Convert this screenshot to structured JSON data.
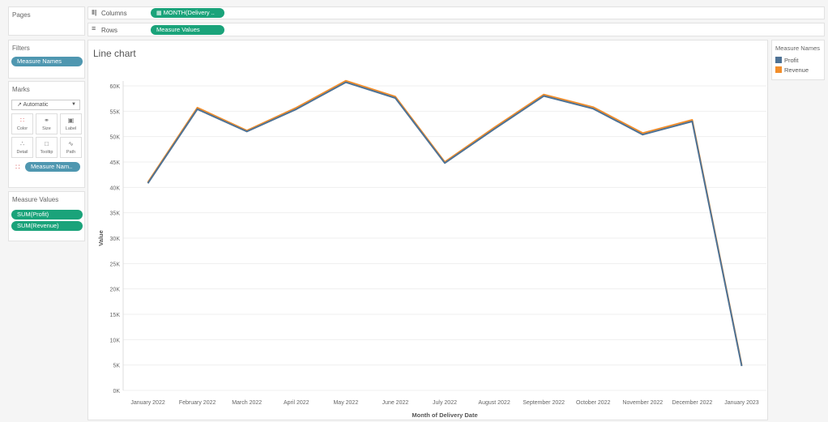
{
  "pages_panel": {
    "title": "Pages"
  },
  "filters_panel": {
    "title": "Filters",
    "pills": [
      "Measure Names"
    ]
  },
  "marks_panel": {
    "title": "Marks",
    "mark_type": "Automatic",
    "buttons": [
      {
        "label": "Color",
        "icon": "color-icon"
      },
      {
        "label": "Size",
        "icon": "size-icon"
      },
      {
        "label": "Label",
        "icon": "label-icon"
      },
      {
        "label": "Detail",
        "icon": "detail-icon"
      },
      {
        "label": "Tooltip",
        "icon": "tooltip-icon"
      },
      {
        "label": "Path",
        "icon": "path-icon"
      }
    ],
    "field_pill": "Measure Nam.."
  },
  "measure_values_panel": {
    "title": "Measure Values",
    "pills": [
      "SUM(Profit)",
      "SUM(Revenue)"
    ]
  },
  "shelves": {
    "columns": {
      "label": "Columns",
      "pill": "MONTH(Delivery .."
    },
    "rows": {
      "label": "Rows",
      "pill": "Measure Values"
    }
  },
  "legend": {
    "title": "Measure Names",
    "items": [
      {
        "name": "Profit",
        "color": "#4e7295"
      },
      {
        "name": "Revenue",
        "color": "#f28e2b"
      }
    ]
  },
  "chart_data": {
    "type": "line",
    "title": "Line chart",
    "xlabel": "Month of Delivery Date",
    "ylabel": "Value",
    "categories": [
      "January 2022",
      "February 2022",
      "March 2022",
      "April 2022",
      "May 2022",
      "June 2022",
      "July 2022",
      "August 2022",
      "September 2022",
      "October 2022",
      "November 2022",
      "December 2022",
      "January 2023"
    ],
    "yticks": [
      "0K",
      "5K",
      "10K",
      "15K",
      "20K",
      "25K",
      "30K",
      "35K",
      "40K",
      "45K",
      "50K",
      "55K",
      "60K"
    ],
    "ylim": [
      0,
      60000
    ],
    "grid": true,
    "legend_position": "right",
    "series": [
      {
        "name": "Revenue",
        "color": "#f28e2b",
        "values": [
          41000,
          55700,
          51200,
          55700,
          61000,
          57900,
          45000,
          51800,
          58300,
          55800,
          50700,
          53300,
          5000
        ]
      },
      {
        "name": "Profit",
        "color": "#4e7295",
        "values": [
          40800,
          55400,
          51000,
          55400,
          60700,
          57600,
          44800,
          51500,
          58000,
          55500,
          50400,
          53000,
          4800
        ]
      }
    ]
  }
}
